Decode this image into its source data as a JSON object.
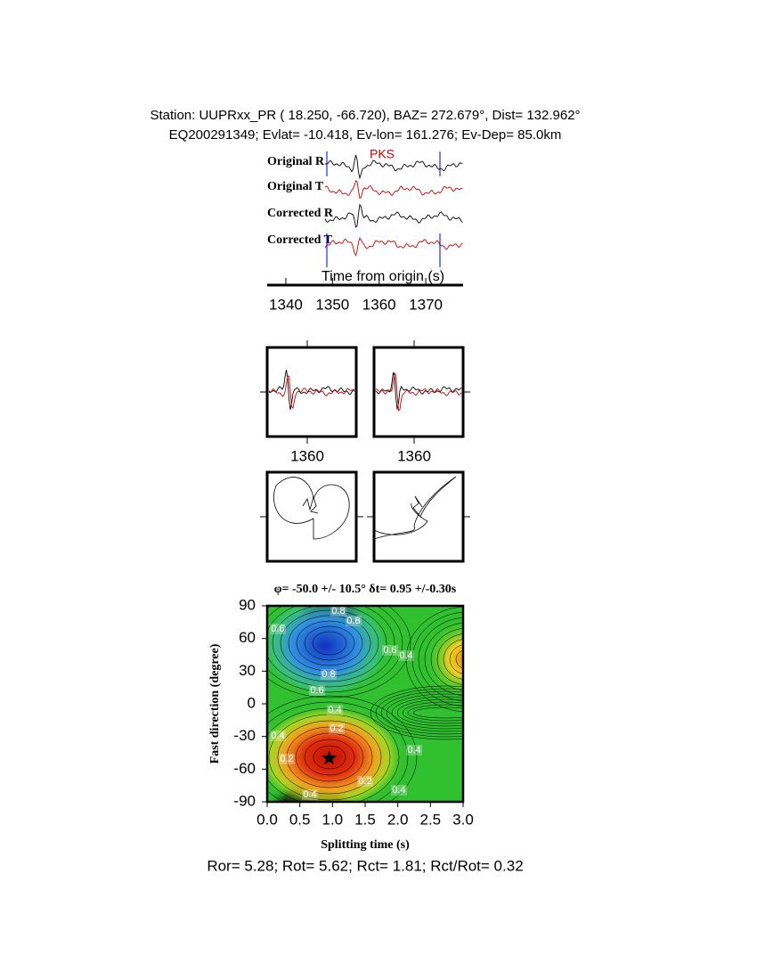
{
  "header": {
    "line1": "Station: UUPRxx_PR (  18.250,  -66.720), BAZ=  272.679°, Dist=  132.962°",
    "line2": "EQ200291349; Evlat= -10.418, Ev-lon= 161.276; Ev-Dep= 85.0km"
  },
  "chart_data": [
    {
      "type": "line",
      "trace_labels": [
        "Original R",
        "Original T",
        "Corrected R",
        "Corrected T"
      ],
      "phase_label": "PKS",
      "xlabel": "Time from origin (s)",
      "xlim": [
        1336,
        1378
      ],
      "xticks": [
        1340,
        1350,
        1360,
        1370
      ]
    },
    {
      "type": "line",
      "xlim": [
        1351,
        1371
      ],
      "xticks": [
        1360
      ]
    },
    {
      "type": "line",
      "xlim": [
        1351,
        1371
      ],
      "xticks": [
        1360
      ]
    },
    {
      "type": "contour",
      "title": "φ= -50.0 +/- 10.5° δt= 0.95 +/-0.30s",
      "xlabel": "Splitting time (s)",
      "ylabel": "Fast direction (degree)",
      "xlim": [
        0,
        3
      ],
      "ylim": [
        -90,
        90
      ],
      "xticks": [
        {
          "value": 0,
          "label": "0.0"
        },
        0.5,
        {
          "value": 1,
          "label": "1.0"
        },
        1.5,
        {
          "value": 2,
          "label": "2.0"
        },
        2.5,
        {
          "value": 3,
          "label": "3.0"
        }
      ],
      "yticks": [
        -90,
        -60,
        -30,
        0,
        30,
        60,
        90
      ],
      "phi": -50,
      "dt": 0.95,
      "contour_labels": [
        0.6,
        0.8,
        0.8,
        0.6,
        0.8,
        0.6,
        0.4,
        0.4,
        0.2,
        0.4,
        0.2,
        0.2,
        0.4,
        0.4,
        0.4
      ]
    }
  ],
  "footer": "Ror= 5.28; Rot= 5.62; Rct= 1.81; Rct/Rot= 0.32"
}
